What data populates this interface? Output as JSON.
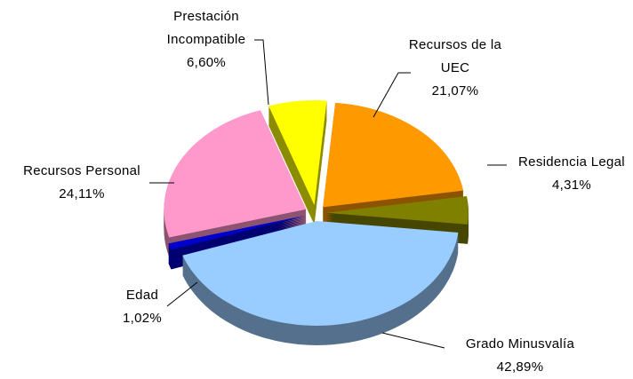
{
  "chart_data": {
    "type": "pie",
    "categories": [
      "Recursos de la UEC",
      "Residencia Legal",
      "Grado Minusvalía",
      "Edad",
      "Recursos Personal",
      "Prestación Incompatible"
    ],
    "values": [
      21.07,
      4.31,
      42.89,
      1.02,
      24.11,
      6.6
    ],
    "value_labels": [
      "21,07%",
      "4,31%",
      "42,89%",
      "1,02%",
      "24,11%",
      "6,60%"
    ],
    "colors": [
      "#ff9900",
      "#808000",
      "#99ccff",
      "#0000cc",
      "#ff99cc",
      "#ffff00"
    ]
  }
}
